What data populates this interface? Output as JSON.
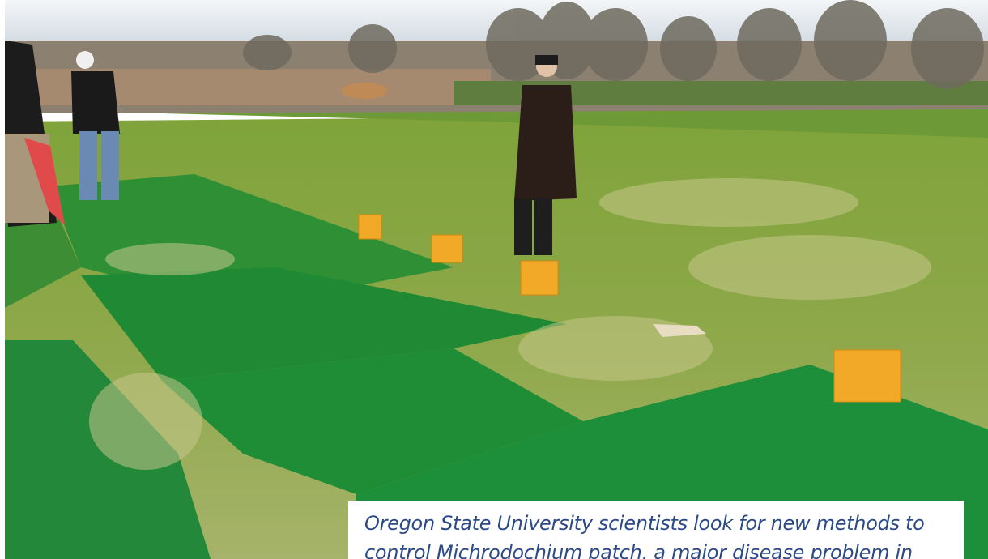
{
  "caption": "Oregon State University scientists look for new methods to control Michrodochium patch, a major disease problem in"
}
